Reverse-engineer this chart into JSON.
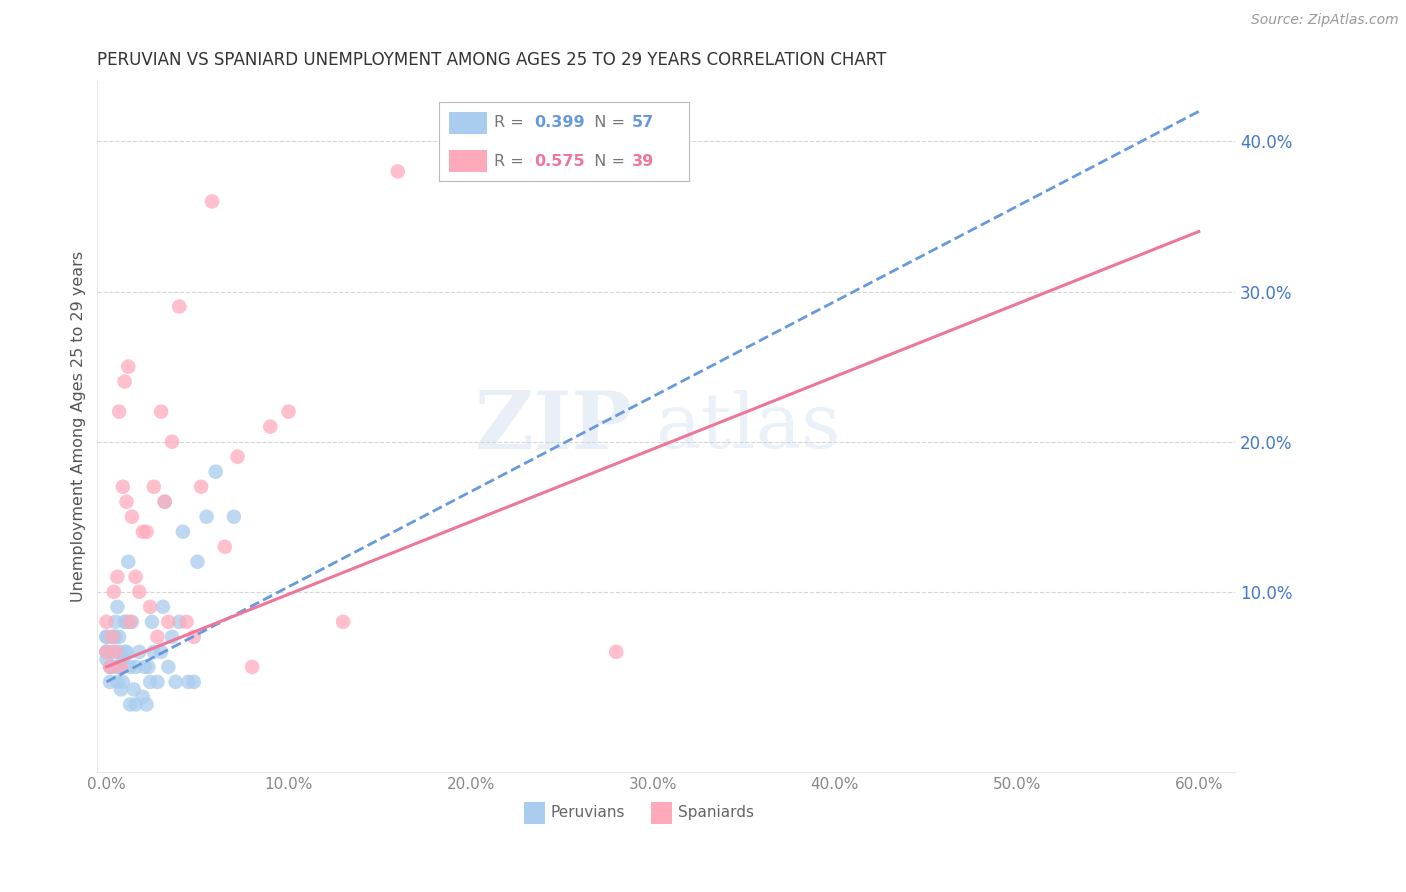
{
  "title": "PERUVIAN VS SPANIARD UNEMPLOYMENT AMONG AGES 25 TO 29 YEARS CORRELATION CHART",
  "source": "Source: ZipAtlas.com",
  "ylabel": "Unemployment Among Ages 25 to 29 years",
  "xlim": [
    -0.005,
    0.62
  ],
  "ylim": [
    -0.02,
    0.44
  ],
  "right_yticks": [
    0.1,
    0.2,
    0.3,
    0.4
  ],
  "xticks": [
    0.0,
    0.1,
    0.2,
    0.3,
    0.4,
    0.5,
    0.6
  ],
  "background_color": "#ffffff",
  "grid_color": "#cccccc",
  "title_color": "#333333",
  "right_axis_color": "#4477cc",
  "watermark_zip": "ZIP",
  "watermark_atlas": "atlas",
  "peruvian_R": 0.399,
  "peruvian_N": 57,
  "spaniard_R": 0.575,
  "spaniard_N": 39,
  "peruvian_color": "#aaccee",
  "spaniard_color": "#ffaabb",
  "peruvian_line_color": "#6699dd",
  "spaniard_line_color": "#ee7799",
  "peruvian_x": [
    0.0,
    0.0,
    0.0,
    0.0,
    0.0,
    0.002,
    0.002,
    0.003,
    0.003,
    0.004,
    0.004,
    0.005,
    0.005,
    0.006,
    0.006,
    0.006,
    0.007,
    0.007,
    0.007,
    0.008,
    0.008,
    0.009,
    0.009,
    0.01,
    0.01,
    0.011,
    0.011,
    0.012,
    0.013,
    0.013,
    0.014,
    0.015,
    0.016,
    0.016,
    0.018,
    0.02,
    0.021,
    0.022,
    0.023,
    0.024,
    0.025,
    0.026,
    0.028,
    0.03,
    0.031,
    0.032,
    0.034,
    0.036,
    0.038,
    0.04,
    0.042,
    0.045,
    0.048,
    0.05,
    0.055,
    0.06,
    0.07
  ],
  "peruvian_y": [
    0.055,
    0.06,
    0.06,
    0.07,
    0.07,
    0.04,
    0.05,
    0.05,
    0.06,
    0.07,
    0.07,
    0.07,
    0.08,
    0.09,
    0.04,
    0.05,
    0.05,
    0.06,
    0.07,
    0.035,
    0.05,
    0.04,
    0.055,
    0.06,
    0.08,
    0.06,
    0.08,
    0.12,
    0.025,
    0.05,
    0.08,
    0.035,
    0.05,
    0.025,
    0.06,
    0.03,
    0.05,
    0.025,
    0.05,
    0.04,
    0.08,
    0.06,
    0.04,
    0.06,
    0.09,
    0.16,
    0.05,
    0.07,
    0.04,
    0.08,
    0.14,
    0.04,
    0.04,
    0.12,
    0.15,
    0.18,
    0.15
  ],
  "spaniard_x": [
    0.0,
    0.0,
    0.002,
    0.003,
    0.004,
    0.005,
    0.006,
    0.007,
    0.008,
    0.009,
    0.01,
    0.011,
    0.012,
    0.013,
    0.014,
    0.016,
    0.018,
    0.02,
    0.022,
    0.024,
    0.026,
    0.028,
    0.03,
    0.032,
    0.034,
    0.036,
    0.04,
    0.044,
    0.048,
    0.052,
    0.058,
    0.065,
    0.072,
    0.08,
    0.09,
    0.1,
    0.13,
    0.16,
    0.28
  ],
  "spaniard_y": [
    0.06,
    0.08,
    0.05,
    0.07,
    0.1,
    0.06,
    0.11,
    0.22,
    0.05,
    0.17,
    0.24,
    0.16,
    0.25,
    0.08,
    0.15,
    0.11,
    0.1,
    0.14,
    0.14,
    0.09,
    0.17,
    0.07,
    0.22,
    0.16,
    0.08,
    0.2,
    0.29,
    0.08,
    0.07,
    0.17,
    0.36,
    0.13,
    0.19,
    0.05,
    0.21,
    0.22,
    0.08,
    0.38,
    0.06
  ],
  "peruvian_trend_x": [
    0.0,
    0.6
  ],
  "peruvian_trend_y": [
    0.04,
    0.42
  ],
  "spaniard_trend_x": [
    0.0,
    0.6
  ],
  "spaniard_trend_y": [
    0.05,
    0.34
  ]
}
